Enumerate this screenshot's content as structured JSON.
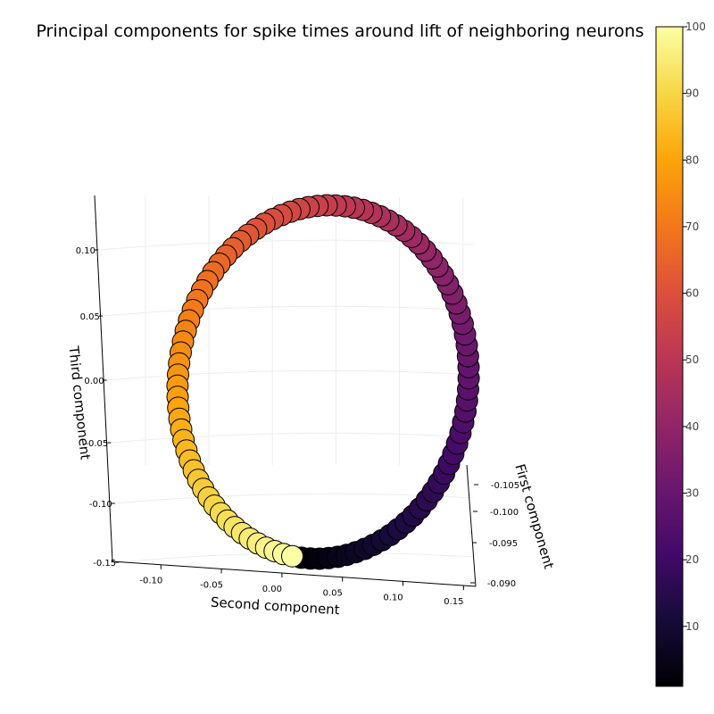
{
  "chart_data": {
    "type": "scatter3d",
    "title": "Principal components for spike times around lift of neighboring neurons",
    "x_axis": {
      "label": "Second component",
      "range": [
        -0.15,
        0.15
      ],
      "ticks": [
        "-0.10",
        "-0.05",
        "0.00",
        "0.05",
        "0.10",
        "0.15"
      ]
    },
    "y_axis": {
      "label": "First component",
      "range": [
        -0.105,
        -0.09
      ],
      "ticks": [
        "-0.105",
        "-0.100",
        "-0.095",
        "-0.090"
      ]
    },
    "z_axis": {
      "label": "Third component",
      "range": [
        -0.15,
        0.12
      ],
      "ticks": [
        "0.10",
        "0.05",
        "0.00",
        "-0.05",
        "-0.10",
        "-0.15"
      ]
    },
    "grid": true,
    "colormap": "inferno",
    "colorbar": {
      "range": [
        1,
        100
      ],
      "ticks": [
        "10",
        "20",
        "30",
        "40",
        "50",
        "60",
        "70",
        "80",
        "90",
        "100"
      ]
    },
    "points": {
      "count": 100,
      "color_values": [
        1,
        100
      ],
      "shape": "closed ring",
      "second_component_range": [
        -0.09,
        0.15
      ],
      "third_component_range": [
        -0.15,
        0.105
      ],
      "first_component": -0.097
    }
  }
}
